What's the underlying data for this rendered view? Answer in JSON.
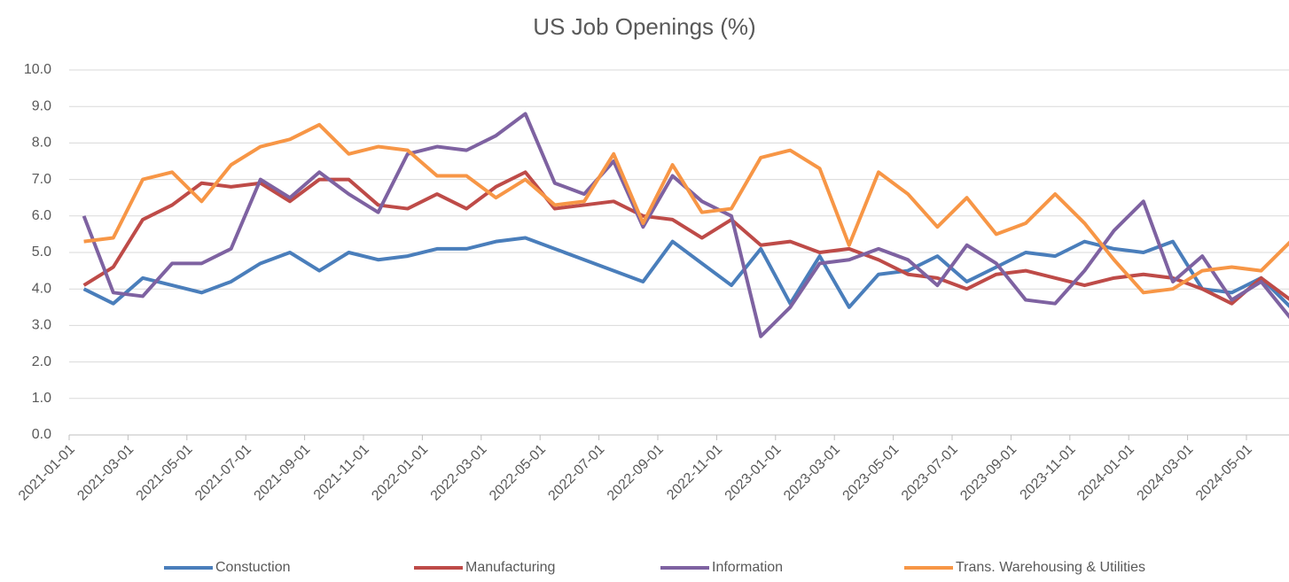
{
  "chart_data": {
    "type": "line",
    "title": "US Job Openings (%)",
    "categories": [
      "2021-01-01",
      null,
      "2021-03-01",
      null,
      "2021-05-01",
      null,
      "2021-07-01",
      null,
      "2021-09-01",
      null,
      "2021-11-01",
      null,
      "2022-01-01",
      null,
      "2022-03-01",
      null,
      "2022-05-01",
      null,
      "2022-07-01",
      null,
      "2022-09-01",
      null,
      "2022-11-01",
      null,
      "2023-01-01",
      null,
      "2023-03-01",
      null,
      "2023-05-01",
      null,
      "2023-07-01",
      null,
      "2023-09-01",
      null,
      "2023-11-01",
      null,
      "2024-01-01",
      null,
      "2024-03-01",
      null,
      "2024-05-01",
      null
    ],
    "series": [
      {
        "name": "Constuction",
        "color": "#4a7ebb",
        "values": [
          4.0,
          3.6,
          4.3,
          4.1,
          3.9,
          4.2,
          4.7,
          5.0,
          4.5,
          5.0,
          4.8,
          4.9,
          5.1,
          5.1,
          5.3,
          5.4,
          5.1,
          4.8,
          4.5,
          4.2,
          5.3,
          4.7,
          4.1,
          5.1,
          3.6,
          4.9,
          3.5,
          4.4,
          4.5,
          4.9,
          4.2,
          4.6,
          5.0,
          4.9,
          5.3,
          5.1,
          5.0,
          5.3,
          4.0,
          3.9,
          4.3,
          3.5
        ]
      },
      {
        "name": "Manufacturing",
        "color": "#be4b48",
        "values": [
          4.1,
          4.6,
          5.9,
          6.3,
          6.9,
          6.8,
          6.9,
          6.4,
          7.0,
          7.0,
          6.3,
          6.2,
          6.6,
          6.2,
          6.8,
          7.2,
          6.2,
          6.3,
          6.4,
          6.0,
          5.9,
          5.4,
          5.9,
          5.2,
          5.3,
          5.0,
          5.1,
          4.8,
          4.4,
          4.3,
          4.0,
          4.4,
          4.5,
          4.3,
          4.1,
          4.3,
          4.4,
          4.3,
          4.0,
          3.6,
          4.3,
          3.7
        ]
      },
      {
        "name": "Information",
        "color": "#7e62a1",
        "values": [
          6.0,
          3.9,
          3.8,
          4.7,
          4.7,
          5.1,
          7.0,
          6.5,
          7.2,
          6.6,
          6.1,
          7.7,
          7.9,
          7.8,
          8.2,
          8.8,
          6.9,
          6.6,
          7.5,
          5.7,
          7.1,
          6.4,
          6.0,
          2.7,
          3.5,
          4.7,
          4.8,
          5.1,
          4.8,
          4.1,
          5.2,
          4.7,
          3.7,
          3.6,
          4.5,
          5.6,
          6.4,
          4.2,
          4.9,
          3.7,
          4.2,
          3.2
        ]
      },
      {
        "name": "Trans. Warehousing & Utilities",
        "color": "#f79646",
        "values": [
          5.3,
          5.4,
          7.0,
          7.2,
          6.4,
          7.4,
          7.9,
          8.1,
          8.5,
          7.7,
          7.9,
          7.8,
          7.1,
          7.1,
          6.5,
          7.0,
          6.3,
          6.4,
          7.7,
          5.8,
          7.4,
          6.1,
          6.2,
          7.6,
          7.8,
          7.3,
          5.2,
          7.2,
          6.6,
          5.7,
          6.5,
          5.5,
          5.8,
          6.6,
          5.8,
          4.8,
          3.9,
          4.0,
          4.5,
          4.6,
          4.5,
          5.3
        ]
      }
    ],
    "ylim": [
      0,
      10
    ],
    "yticks": [
      {
        "value": 0,
        "label": "0.0"
      },
      {
        "value": 1,
        "label": "1.0"
      },
      {
        "value": 2,
        "label": "2.0"
      },
      {
        "value": 3,
        "label": "3.0"
      },
      {
        "value": 4,
        "label": "4.0"
      },
      {
        "value": 5,
        "label": "5.0"
      },
      {
        "value": 6,
        "label": "6.0"
      },
      {
        "value": 7,
        "label": "7.0"
      },
      {
        "value": 8,
        "label": "8.0"
      },
      {
        "value": 9,
        "label": "9.0"
      },
      {
        "value": 10,
        "label": "10.0"
      }
    ],
    "grid": true,
    "legend": "bottom"
  }
}
